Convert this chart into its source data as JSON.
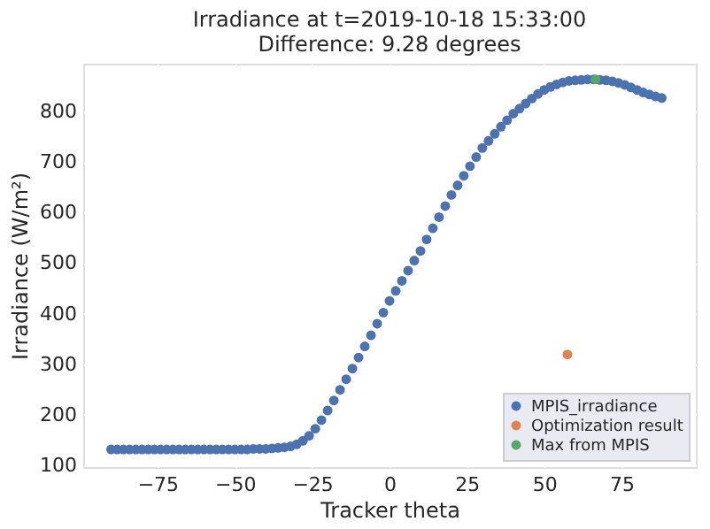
{
  "chart_data": {
    "type": "scatter",
    "title": "Irradiance at t=2019-10-18 15:33:00",
    "subtitle": "Difference: 9.28 degrees",
    "xlabel": "Tracker theta",
    "ylabel": "Irradiance (W/m²)",
    "xlim": [
      -99,
      99
    ],
    "ylim": [
      96,
      895
    ],
    "xticks": [
      -75,
      -50,
      -25,
      0,
      25,
      50,
      75
    ],
    "yticks": [
      100,
      200,
      300,
      400,
      500,
      600,
      700,
      800
    ],
    "grid": true,
    "legend": "bottom right",
    "marker": "circle",
    "series": [
      {
        "name": "MPIS_irradiance",
        "color": "#4c72b0",
        "x": [
          -90,
          -88,
          -86,
          -84,
          -82,
          -80,
          -78,
          -76,
          -74,
          -72,
          -70,
          -68,
          -66,
          -64,
          -62,
          -60,
          -58,
          -56,
          -54,
          -52,
          -50,
          -48,
          -46,
          -44,
          -42,
          -40,
          -38,
          -36,
          -34,
          -32,
          -30,
          -28,
          -26,
          -24,
          -22,
          -20,
          -18,
          -16,
          -14,
          -12,
          -10,
          -8,
          -6,
          -4,
          -2,
          0,
          2,
          4,
          6,
          8,
          10,
          12,
          14,
          16,
          18,
          20,
          22,
          24,
          26,
          28,
          30,
          32,
          34,
          36,
          38,
          40,
          42,
          44,
          46,
          48,
          50,
          52,
          54,
          56,
          58,
          60,
          62,
          64,
          66,
          68,
          70,
          72,
          74,
          76,
          78,
          80,
          82,
          84,
          86,
          88
        ],
        "values": [
          131,
          131,
          131,
          131,
          131,
          131,
          131,
          131,
          131,
          131,
          131,
          131,
          131,
          131,
          131,
          131,
          131,
          131,
          131,
          131,
          131,
          131,
          131,
          132,
          132,
          132,
          133,
          134,
          135,
          137,
          141,
          148,
          158,
          172,
          189,
          208,
          228,
          249,
          270,
          291,
          313,
          335,
          357,
          380,
          402,
          425,
          445,
          465,
          485,
          505,
          524,
          547,
          569,
          591,
          613,
          635,
          654,
          673,
          692,
          710,
          728,
          742,
          756,
          770,
          783,
          796,
          806,
          816,
          826,
          835,
          843,
          849,
          854,
          858,
          861,
          862,
          863,
          864,
          864,
          863,
          862,
          860,
          857,
          853,
          848,
          843,
          838,
          834,
          830,
          827
        ]
      },
      {
        "name": "Optimization result",
        "color": "#dd8452",
        "x": [
          57.5
        ],
        "values": [
          319
        ]
      },
      {
        "name": "Max from MPIS",
        "color": "#55a868",
        "x": [
          66.6
        ],
        "values": [
          864
        ]
      }
    ]
  }
}
